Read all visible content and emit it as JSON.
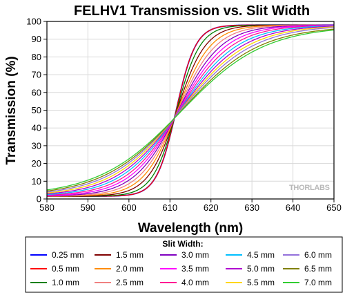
{
  "chart_data": {
    "type": "line",
    "title": "FELHV1 Transmission vs. Slit Width",
    "xlabel": "Wavelength (nm)",
    "ylabel": "Transmission (%)",
    "xlim": [
      580,
      650
    ],
    "ylim": [
      0,
      100
    ],
    "x_ticks": [
      "580",
      "590",
      "600",
      "610",
      "620",
      "630",
      "640",
      "650"
    ],
    "y_ticks": [
      "0",
      "10",
      "20",
      "30",
      "40",
      "50",
      "60",
      "70",
      "80",
      "90",
      "100"
    ],
    "grid": true,
    "legend_placement": "bottom",
    "legend_title": "Slit Width:",
    "watermark": "THORLABS",
    "series": [
      {
        "name": "0.25 mm",
        "color": "#0000ff",
        "center": 611.5,
        "width": 2.4,
        "high": 98
      },
      {
        "name": "0.5 mm",
        "color": "#ff0000",
        "center": 611.5,
        "width": 2.4,
        "high": 98
      },
      {
        "name": "1.0 mm",
        "color": "#008000",
        "center": 611.6,
        "width": 2.9,
        "high": 98
      },
      {
        "name": "1.5 mm",
        "color": "#800000",
        "center": 611.7,
        "width": 3.5,
        "high": 98
      },
      {
        "name": "2.0 mm",
        "color": "#ff8c00",
        "center": 611.8,
        "width": 4.1,
        "high": 98
      },
      {
        "name": "2.5 mm",
        "color": "#f08080",
        "center": 611.9,
        "width": 4.7,
        "high": 98
      },
      {
        "name": "3.0 mm",
        "color": "#8000c0",
        "center": 612.0,
        "width": 5.3,
        "high": 98
      },
      {
        "name": "3.5 mm",
        "color": "#ff00ff",
        "center": 612.1,
        "width": 5.9,
        "high": 98
      },
      {
        "name": "4.0 mm",
        "color": "#ff1493",
        "center": 612.2,
        "width": 6.5,
        "high": 98
      },
      {
        "name": "4.5 mm",
        "color": "#00bfff",
        "center": 612.3,
        "width": 7.1,
        "high": 98
      },
      {
        "name": "5.0 mm",
        "color": "#b000d0",
        "center": 612.4,
        "width": 7.7,
        "high": 98
      },
      {
        "name": "5.5 mm",
        "color": "#ffd700",
        "center": 612.5,
        "width": 8.3,
        "high": 98
      },
      {
        "name": "6.0 mm",
        "color": "#9370db",
        "center": 612.6,
        "width": 8.9,
        "high": 98
      },
      {
        "name": "6.5 mm",
        "color": "#808000",
        "center": 612.7,
        "width": 9.5,
        "high": 97.5
      },
      {
        "name": "7.0 mm",
        "color": "#32cd32",
        "center": 612.8,
        "width": 10.1,
        "high": 97.5
      }
    ]
  }
}
